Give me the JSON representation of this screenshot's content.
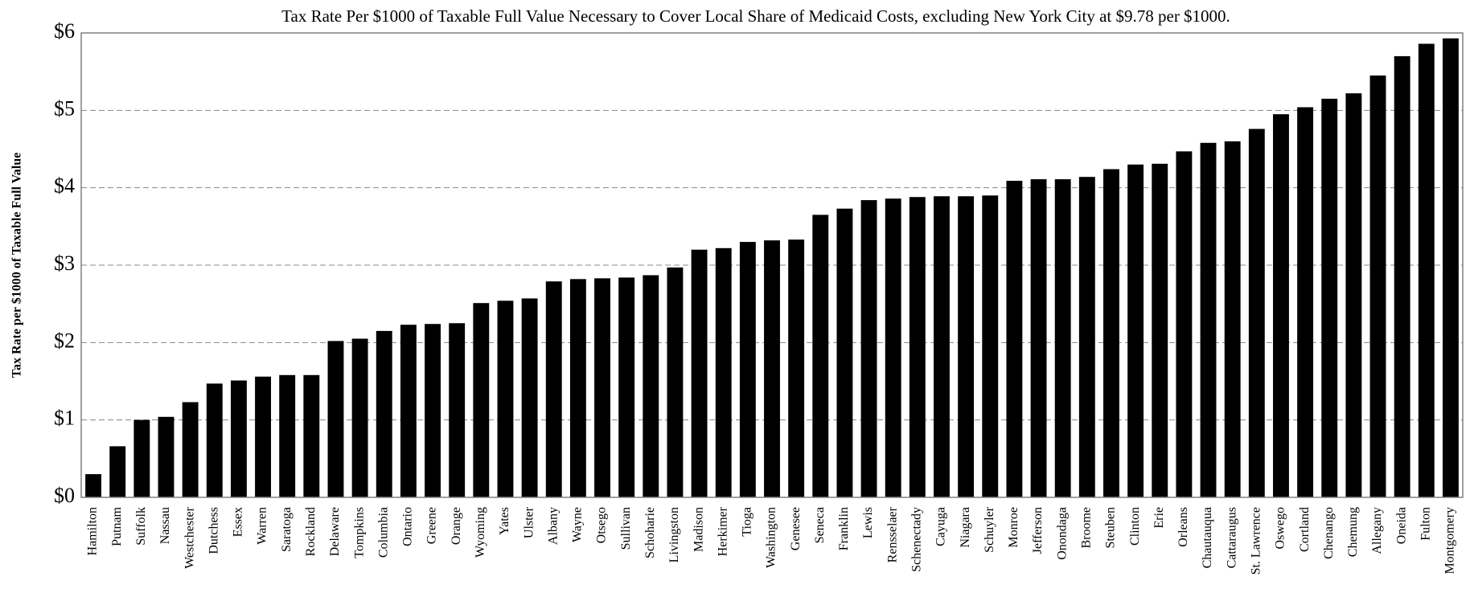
{
  "chart_data": {
    "type": "bar",
    "title": "Tax Rate Per $1000 of Taxable Full Value Necessary to Cover Local Share of Medicaid Costs, excluding New York City at  $9.78 per $1000.",
    "y_label": "Tax Rate per $1000 of Taxable Full Value",
    "categories": [
      "Hamilton",
      "Putnam",
      "Suffolk",
      "Nassau",
      "Westchester",
      "Dutchess",
      "Essex",
      "Warren",
      "Saratoga",
      "Rockland",
      "Delaware",
      "Tompkins",
      "Columbia",
      "Ontario",
      "Greene",
      "Orange",
      "Wyoming",
      "Yates",
      "Ulster",
      "Albany",
      "Wayne",
      "Otsego",
      "Sullivan",
      "Schoharie",
      "Livingston",
      "Madison",
      "Herkimer",
      "Tioga",
      "Washington",
      "Genesee",
      "Seneca",
      "Franklin",
      "Lewis",
      "Rensselaer",
      "Schenectady",
      "Cayuga",
      "Niagara",
      "Schuyler",
      "Monroe",
      "Jefferson",
      "Onondaga",
      "Broome",
      "Steuben",
      "Clinton",
      "Erie",
      "Orleans",
      "Chautauqua",
      "Cattaraugus",
      "St. Lawrence",
      "Oswego",
      "Cortland",
      "Chenango",
      "Chemung",
      "Allegany",
      "Oneida",
      "Fulton",
      "Montgomery"
    ],
    "values": [
      0.3,
      0.66,
      1.0,
      1.04,
      1.23,
      1.47,
      1.51,
      1.56,
      1.58,
      1.58,
      2.02,
      2.05,
      2.15,
      2.23,
      2.24,
      2.25,
      2.51,
      2.54,
      2.57,
      2.79,
      2.82,
      2.83,
      2.84,
      2.87,
      2.97,
      3.2,
      3.22,
      3.3,
      3.32,
      3.33,
      3.65,
      3.73,
      3.84,
      3.86,
      3.88,
      3.89,
      3.89,
      3.9,
      4.09,
      4.11,
      4.11,
      4.14,
      4.24,
      4.3,
      4.31,
      4.47,
      4.58,
      4.6,
      4.76,
      4.95,
      5.04,
      5.15,
      5.22,
      5.45,
      5.7,
      5.86,
      5.93
    ],
    "color": "#000000",
    "ylim": [
      0,
      6
    ],
    "yticks": [
      {
        "value": 0,
        "label": "$0"
      },
      {
        "value": 1,
        "label": "$1"
      },
      {
        "value": 2,
        "label": "$2"
      },
      {
        "value": 3,
        "label": "$3"
      },
      {
        "value": 4,
        "label": "$4"
      },
      {
        "value": 5,
        "label": "$5"
      },
      {
        "value": 6,
        "label": "$6"
      }
    ],
    "grid": true
  }
}
